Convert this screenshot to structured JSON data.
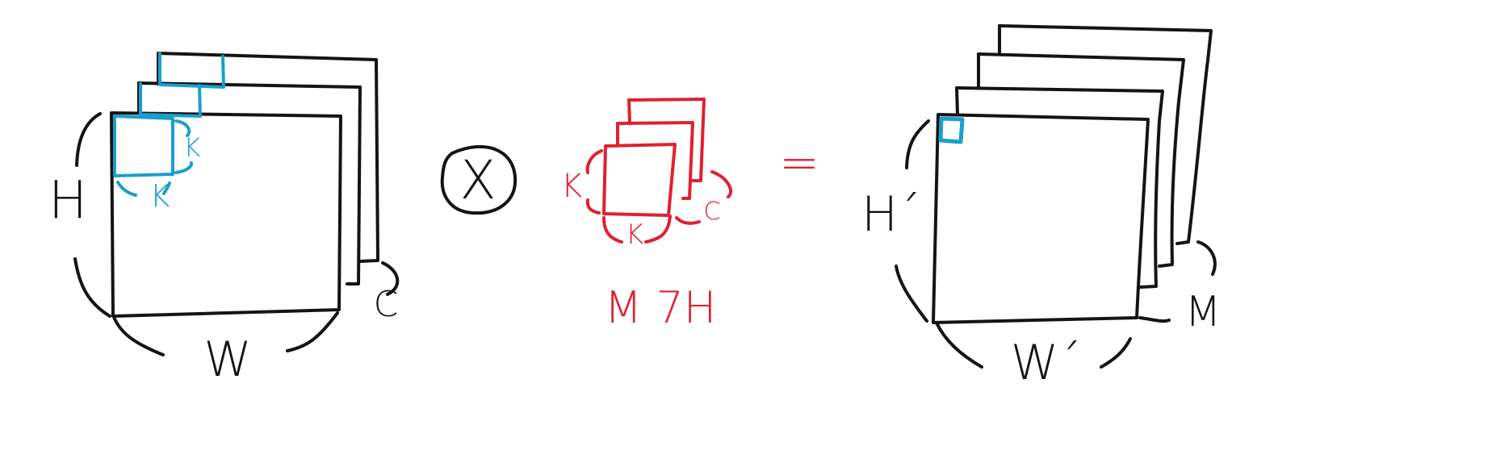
{
  "colors": {
    "ink": "#141414",
    "input_window": "#1a9fcc",
    "kernel": "#e0202f"
  },
  "input": {
    "height_label": "H",
    "width_label": "W",
    "channels_label": "C",
    "kernel_height_label": "K",
    "kernel_width_label": "K"
  },
  "operator": {
    "convolve_symbol": "X",
    "equals_symbol": "="
  },
  "kernel": {
    "size_label_left": "K",
    "size_label_bottom": "K",
    "channels_label": "C",
    "count_label": "M 7H"
  },
  "output": {
    "height_label": "H´",
    "width_label": "W´",
    "channels_label": "M"
  }
}
